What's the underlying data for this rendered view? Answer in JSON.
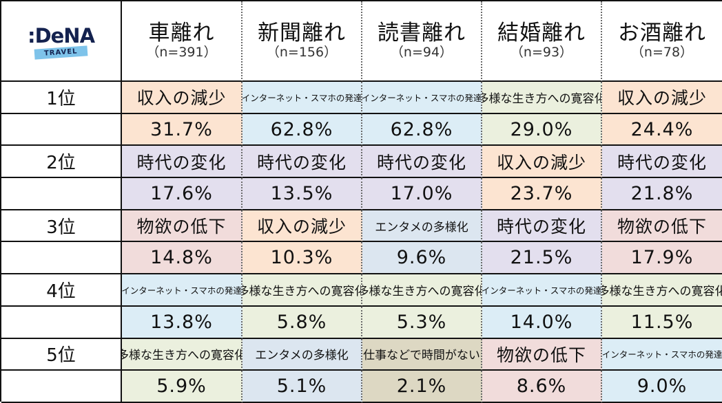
{
  "logo": {
    "name": ":DeNA",
    "sub": "TRAVEL"
  },
  "colors": {
    "収入の減少": "#fce4d1",
    "インターネット・スマホの発達": "#dcedf6",
    "多様な生き方への寛容化": "#ebf0de",
    "時代の変化": "#e3dfee",
    "物欲の低下": "#f1dcdb",
    "エンタメの多様化": "#dce6f0",
    "仕事などで時間がない": "#ddd8c3"
  },
  "chart_data": {
    "type": "table",
    "columns": [
      {
        "title": "車離れ",
        "n": "（n=391）"
      },
      {
        "title": "新聞離れ",
        "n": "（n=156）"
      },
      {
        "title": "読書離れ",
        "n": "（n=94）"
      },
      {
        "title": "結婚離れ",
        "n": "（n=93）"
      },
      {
        "title": "お酒離れ",
        "n": "（n=78）"
      }
    ],
    "ranks": [
      {
        "rank": "1位",
        "cells": [
          {
            "label": "収入の減少",
            "value": "31.7%"
          },
          {
            "label": "インターネット・スマホの発達",
            "value": "62.8%"
          },
          {
            "label": "インターネット・スマホの発達",
            "value": "62.8%"
          },
          {
            "label": "多様な生き方への寛容化",
            "value": "29.0%"
          },
          {
            "label": "収入の減少",
            "value": "24.4%"
          }
        ]
      },
      {
        "rank": "2位",
        "cells": [
          {
            "label": "時代の変化",
            "value": "17.6%"
          },
          {
            "label": "時代の変化",
            "value": "13.5%"
          },
          {
            "label": "時代の変化",
            "value": "17.0%"
          },
          {
            "label": "収入の減少",
            "value": "23.7%"
          },
          {
            "label": "時代の変化",
            "value": "21.8%"
          }
        ]
      },
      {
        "rank": "3位",
        "cells": [
          {
            "label": "物欲の低下",
            "value": "14.8%"
          },
          {
            "label": "収入の減少",
            "value": "10.3%"
          },
          {
            "label": "エンタメの多様化",
            "value": "9.6%"
          },
          {
            "label": "時代の変化",
            "value": "21.5%"
          },
          {
            "label": "物欲の低下",
            "value": "17.9%"
          }
        ]
      },
      {
        "rank": "4位",
        "cells": [
          {
            "label": "インターネット・スマホの発達",
            "value": "13.8%"
          },
          {
            "label": "多様な生き方への寛容化",
            "value": "5.8%"
          },
          {
            "label": "多様な生き方への寛容化",
            "value": "5.3%"
          },
          {
            "label": "インターネット・スマホの発達",
            "value": "14.0%"
          },
          {
            "label": "多様な生き方への寛容化",
            "value": "11.5%"
          }
        ]
      },
      {
        "rank": "5位",
        "cells": [
          {
            "label": "多様な生き方への寛容化",
            "value": "5.9%"
          },
          {
            "label": "エンタメの多様化",
            "value": "5.1%"
          },
          {
            "label": "仕事などで時間がない",
            "value": "2.1%"
          },
          {
            "label": "物欲の低下",
            "value": "8.6%"
          },
          {
            "label": "インターネット・スマホの発達",
            "value": "9.0%"
          }
        ]
      }
    ]
  }
}
